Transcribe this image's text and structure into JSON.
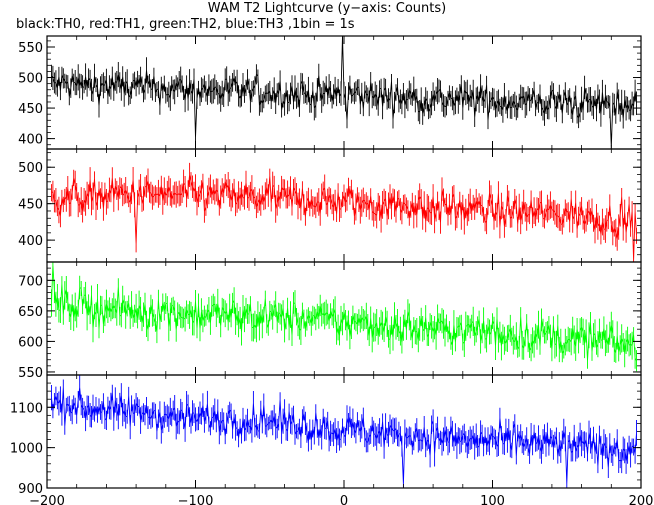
{
  "chart_data": {
    "type": "line",
    "title": "WAM T2 Lightcurve (y−axis: Counts)",
    "subtitle": "black:TH0, red:TH1, green:TH2, blue:TH3 ,1bin = 1s",
    "x_range": [
      -200,
      200
    ],
    "x_ticks": [
      {
        "value": -200,
        "label": "−200"
      },
      {
        "value": -100,
        "label": "−100"
      },
      {
        "value": 0,
        "label": "0"
      },
      {
        "value": 100,
        "label": "100"
      },
      {
        "value": 200,
        "label": "200"
      }
    ],
    "panels": [
      {
        "name": "TH0",
        "color": "#000000",
        "ylim": [
          383,
          568
        ],
        "y_ticks": [
          {
            "value": 400,
            "label": "400"
          },
          {
            "value": 450,
            "label": "450"
          },
          {
            "value": 500,
            "label": "500"
          },
          {
            "value": 550,
            "label": "550"
          }
        ],
        "trend_x": [
          -197,
          -150,
          -100,
          -50,
          0,
          50,
          100,
          150,
          197
        ],
        "trend_y": [
          490,
          485,
          480,
          475,
          472,
          466,
          462,
          458,
          455
        ],
        "noise": 18,
        "spikes": [
          {
            "x": -100,
            "y": 402
          },
          {
            "x": -1,
            "y": 568
          },
          {
            "x": 2,
            "y": 430
          },
          {
            "x": 180,
            "y": 386
          }
        ]
      },
      {
        "name": "TH1",
        "color": "#ff0000",
        "ylim": [
          370,
          525
        ],
        "y_ticks": [
          {
            "value": 400,
            "label": "400"
          },
          {
            "value": 450,
            "label": "450"
          },
          {
            "value": 500,
            "label": "500"
          }
        ],
        "trend_x": [
          -197,
          -150,
          -100,
          -50,
          0,
          50,
          100,
          150,
          197
        ],
        "trend_y": [
          458,
          462,
          462,
          458,
          452,
          446,
          440,
          436,
          425
        ],
        "noise": 16,
        "spikes": [
          {
            "x": -140,
            "y": 395
          },
          {
            "x": 195,
            "y": 372
          }
        ]
      },
      {
        "name": "TH2",
        "color": "#00ff00",
        "ylim": [
          545,
          730
        ],
        "y_ticks": [
          {
            "value": 550,
            "label": "550"
          },
          {
            "value": 600,
            "label": "600"
          },
          {
            "value": 650,
            "label": "650"
          },
          {
            "value": 700,
            "label": "700"
          }
        ],
        "trend_x": [
          -197,
          -150,
          -100,
          -50,
          0,
          50,
          100,
          150,
          197
        ],
        "trend_y": [
          665,
          650,
          645,
          640,
          632,
          622,
          615,
          605,
          595
        ],
        "noise": 20,
        "spikes": [
          {
            "x": -196,
            "y": 725
          }
        ]
      },
      {
        "name": "TH3",
        "color": "#0000ff",
        "ylim": [
          900,
          1180
        ],
        "y_ticks": [
          {
            "value": 900,
            "label": "900"
          },
          {
            "value": 1000,
            "label": "1000"
          },
          {
            "value": 1100,
            "label": "1100"
          }
        ],
        "trend_x": [
          -197,
          -150,
          -100,
          -50,
          0,
          50,
          100,
          150,
          197
        ],
        "trend_y": [
          1110,
          1090,
          1075,
          1065,
          1045,
          1030,
          1015,
          1005,
          995
        ],
        "noise": 28,
        "spikes": [
          {
            "x": 40,
            "y": 910
          },
          {
            "x": 150,
            "y": 910
          }
        ]
      }
    ]
  }
}
